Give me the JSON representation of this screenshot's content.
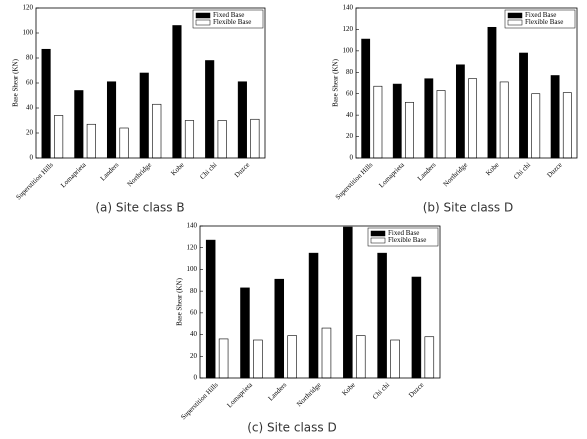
{
  "chart_data": [
    {
      "type": "bar",
      "caption": "(a) Site class B",
      "ylabel": "Base Shear (KN)",
      "categories": [
        "Superstition Hills",
        "Lomaprieta",
        "Landers",
        "Northridge",
        "Kobe",
        "Chi chi",
        "Duzce"
      ],
      "series": [
        {
          "name": "Fixed Base",
          "color": "#000000",
          "values": [
            87,
            54,
            61,
            68,
            106,
            78,
            61
          ]
        },
        {
          "name": "Flexible Base",
          "color": "#ffffff",
          "values": [
            34,
            27,
            24,
            43,
            30,
            30,
            31
          ]
        }
      ],
      "ylim": [
        0,
        120
      ],
      "yticks": [
        0,
        20,
        40,
        60,
        80,
        100,
        120
      ],
      "legend": "upper right"
    },
    {
      "type": "bar",
      "caption": "(b) Site class D",
      "ylabel": "Base Shear (KN)",
      "categories": [
        "Superstition Hills",
        "Lomaprieta",
        "Landers",
        "Northridge",
        "Kobe",
        "Chi chi",
        "Duzce"
      ],
      "series": [
        {
          "name": "Fixed Base",
          "color": "#000000",
          "values": [
            111,
            69,
            74,
            87,
            122,
            98,
            77
          ]
        },
        {
          "name": "Flexible Base",
          "color": "#ffffff",
          "values": [
            67,
            52,
            63,
            74,
            71,
            60,
            61
          ]
        }
      ],
      "ylim": [
        0,
        140
      ],
      "yticks": [
        0,
        20,
        40,
        60,
        80,
        100,
        120,
        140
      ],
      "legend": "upper right"
    },
    {
      "type": "bar",
      "caption": "(c) Site class D",
      "ylabel": "Base Shear (KN)",
      "categories": [
        "Superstition Hills",
        "Lomaprieta",
        "Landers",
        "Northridge",
        "Kobe",
        "Chi chi",
        "Duzce"
      ],
      "series": [
        {
          "name": "Fixed Base",
          "color": "#000000",
          "values": [
            127,
            83,
            91,
            115,
            139,
            115,
            93
          ]
        },
        {
          "name": "Flexible Base",
          "color": "#ffffff",
          "values": [
            36,
            35,
            39,
            46,
            39,
            35,
            38
          ]
        }
      ],
      "ylim": [
        0,
        140
      ],
      "yticks": [
        0,
        20,
        40,
        60,
        80,
        100,
        120,
        140
      ],
      "legend": "upper right"
    }
  ]
}
